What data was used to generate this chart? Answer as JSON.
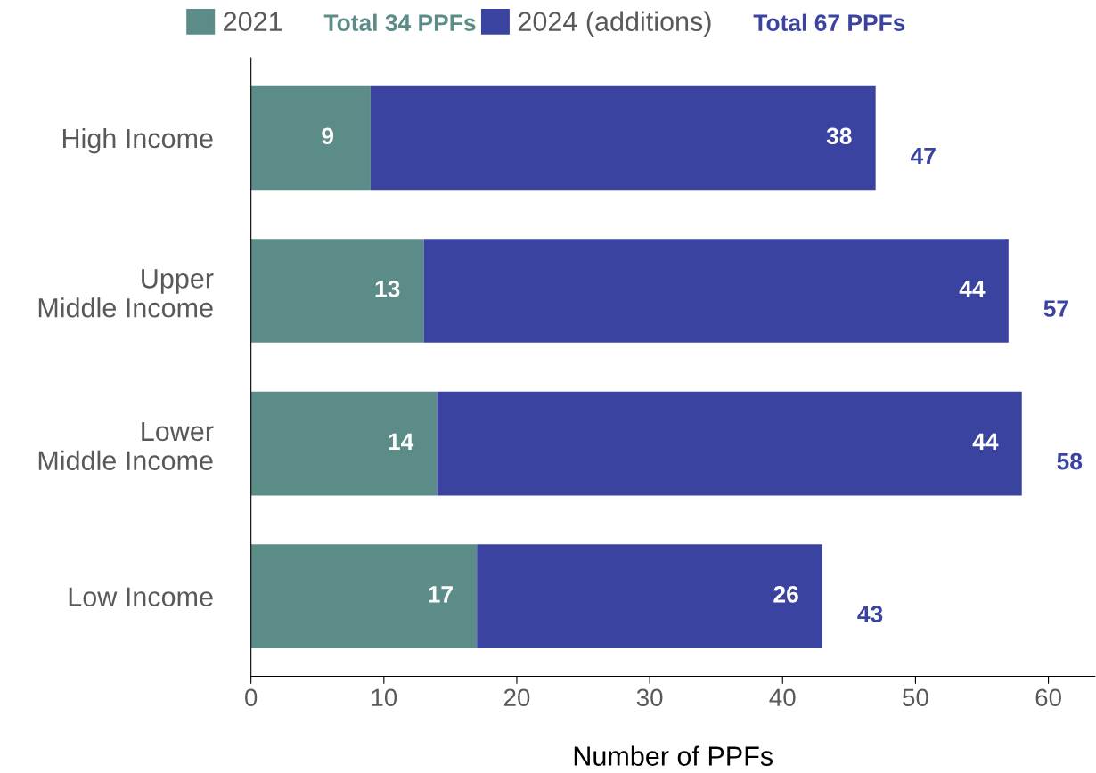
{
  "chart_data": {
    "type": "bar",
    "orientation": "horizontal",
    "stacked": true,
    "xlabel": "Number of PPFs",
    "categories": [
      "High Income",
      "Upper\nMiddle Income",
      "Lower\nMiddle Income",
      "Low Income"
    ],
    "series": [
      {
        "name": "2021",
        "color": "#5b8c87",
        "values": [
          9,
          13,
          14,
          17
        ]
      },
      {
        "name": "2024 (additions)",
        "color": "#3a43a0",
        "values": [
          38,
          44,
          44,
          26
        ]
      }
    ],
    "totals": [
      "47",
      "57",
      "58",
      "43"
    ],
    "data_labels": true,
    "annotations": [
      "Total 34 PPFs",
      "Total 67 PPFs"
    ],
    "xlim": [
      0,
      63.5
    ],
    "xticks": [
      0,
      10,
      20,
      30,
      40,
      50,
      60
    ],
    "grid": false,
    "legend": "top"
  }
}
